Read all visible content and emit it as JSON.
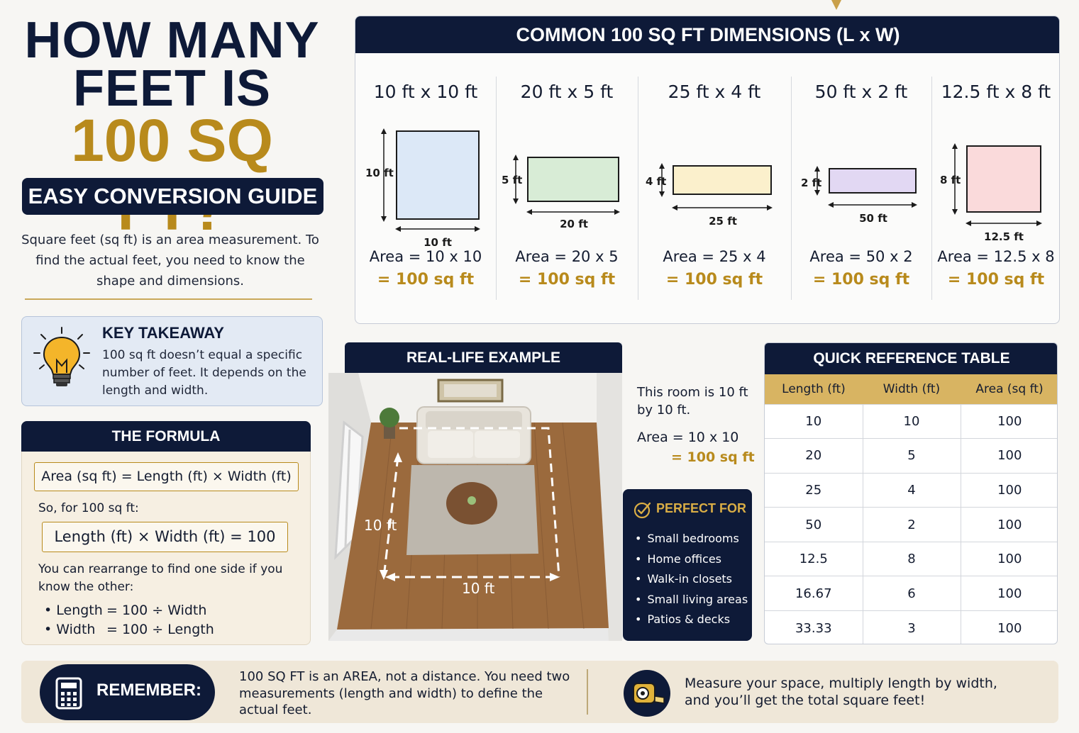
{
  "title": {
    "line1": "HOW MANY",
    "line2": "FEET IS",
    "line3": "100 SQ FT?",
    "subtitle": "EASY CONVERSION GUIDE",
    "intro": "Square feet (sq ft) is an area measurement. To find the actual feet, you need to know the shape and dimensions."
  },
  "key_takeaway": {
    "title": "KEY TAKEAWAY",
    "text": "100 sq ft doesn’t equal a specific number of feet. It depends on the length and width."
  },
  "formula": {
    "heading": "THE FORMULA",
    "main": "Area (sq ft)  =  Length (ft) × Width (ft)",
    "so_for": "So, for 100 sq ft:",
    "equation": "Length (ft) × Width (ft) = 100",
    "rearrange": "You can rearrange to find one side if you know the other:",
    "items": [
      {
        "bullet": "• Length",
        "expr": "= 100 ÷ Width"
      },
      {
        "bullet": "• Width",
        "expr": "= 100 ÷ Length"
      }
    ]
  },
  "dimensions": {
    "heading": "COMMON 100 SQ FT DIMENSIONS (L x W)",
    "items": [
      {
        "title": "10 ft x 10 ft",
        "len_label": "10 ft",
        "wid_label": "10 ft",
        "area": "Area = 10 x 10",
        "result": "= 100 sq ft",
        "color": "#dce8f7"
      },
      {
        "title": "20 ft x 5 ft",
        "len_label": "20 ft",
        "wid_label": "5 ft",
        "area": "Area = 20 x 5",
        "result": "= 100 sq ft",
        "color": "#d8ecd6"
      },
      {
        "title": "25 ft x 4 ft",
        "len_label": "25 ft",
        "wid_label": "4 ft",
        "area": "Area = 25 x 4",
        "result": "= 100 sq ft",
        "color": "#fbf0cc"
      },
      {
        "title": "50 ft x 2 ft",
        "len_label": "50 ft",
        "wid_label": "2 ft",
        "area": "Area = 50 x 2",
        "result": "= 100 sq ft",
        "color": "#e2d8f3"
      },
      {
        "title": "12.5 ft x 8 ft",
        "len_label": "12.5 ft",
        "wid_label": "8 ft",
        "area": "Area = 12.5 x 8",
        "result": "= 100 sq ft",
        "color": "#fadadb"
      }
    ]
  },
  "real_life": {
    "heading": "REAL-LIFE EXAMPLE",
    "side_label": "10 ft",
    "bottom_label": "10 ft",
    "note": "This room is 10 ft by 10 ft.",
    "area": "Area = 10 x 10",
    "result": "= 100 sq ft"
  },
  "perfect_for": {
    "title": "PERFECT FOR",
    "items": [
      "Small bedrooms",
      "Home offices",
      "Walk-in closets",
      "Small living areas",
      "Patios & decks"
    ]
  },
  "reference": {
    "heading": "QUICK REFERENCE TABLE",
    "columns": [
      "Length (ft)",
      "Width (ft)",
      "Area (sq ft)"
    ],
    "rows": [
      [
        "10",
        "10",
        "100"
      ],
      [
        "20",
        "5",
        "100"
      ],
      [
        "25",
        "4",
        "100"
      ],
      [
        "50",
        "2",
        "100"
      ],
      [
        "12.5",
        "8",
        "100"
      ],
      [
        "16.67",
        "6",
        "100"
      ],
      [
        "33.33",
        "3",
        "100"
      ]
    ]
  },
  "remember": {
    "label": "REMEMBER:",
    "text": "100 SQ FT is an AREA, not a distance. You need two measurements (length and width) to define the actual feet.",
    "measure": "Measure your space, multiply length by width, and you’ll get the total square feet!"
  },
  "icons": [
    "lightbulb-icon",
    "check-circle-icon",
    "calculator-icon",
    "tape-measure-icon"
  ],
  "colors": {
    "navy": "#0e1a38",
    "gold": "#b88a1c",
    "table_header": "#d8b462"
  }
}
